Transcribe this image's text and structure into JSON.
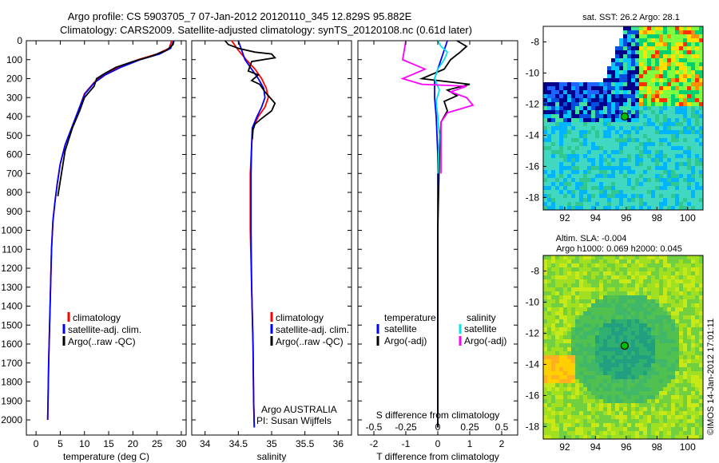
{
  "header": {
    "line1": "Argo profile: CS 5903705_7 07-Jan-2012 20120110_345 12.829S 95.882E",
    "line2": "Climatology: CARS2009. Satellite-adjusted climatology: synTS_20120108.nc (0.61d later)"
  },
  "colors": {
    "climatology": "#ff0000",
    "satellite": "#0000ff",
    "argo": "#000000",
    "sal_satellite": "#00e5ee",
    "sal_argo": "#ff00ff"
  },
  "chart_data": [
    {
      "id": "temperature",
      "type": "line",
      "xlabel": "temperature (deg C)",
      "ylabel": "",
      "xlim": [
        -2,
        31
      ],
      "ylim": [
        2080,
        0
      ],
      "xticks": [
        "0",
        "5",
        "10",
        "15",
        "20",
        "25",
        "30"
      ],
      "yticks": [
        "0",
        "100",
        "200",
        "300",
        "400",
        "500",
        "600",
        "700",
        "800",
        "900",
        "1000",
        "1100",
        "1200",
        "1300",
        "1400",
        "1500",
        "1600",
        "1700",
        "1800",
        "1900",
        "2000"
      ],
      "legend": [
        "climatology",
        "satellite-adj. clim.",
        "Argo(..raw -QC)"
      ],
      "series": [
        {
          "name": "climatology",
          "color_key": "climatology",
          "x": [
            28,
            27.5,
            25,
            21,
            17,
            14,
            12,
            10,
            9,
            7.5,
            6,
            5,
            4.4,
            3.9,
            3.5,
            3.2,
            3,
            2.8,
            2.6,
            2.4
          ],
          "y": [
            0,
            40,
            70,
            100,
            140,
            180,
            220,
            280,
            350,
            450,
            550,
            650,
            750,
            850,
            950,
            1100,
            1300,
            1500,
            1700,
            2000
          ]
        },
        {
          "name": "satellite-adj. clim.",
          "color_key": "satellite",
          "x": [
            28.4,
            27.8,
            25.5,
            21.5,
            17.5,
            14.3,
            12.1,
            10.1,
            9,
            7.5,
            6,
            5,
            4.4,
            3.9,
            3.5,
            3.2,
            3,
            2.8,
            2.6,
            2.4
          ],
          "y": [
            0,
            40,
            70,
            100,
            140,
            180,
            220,
            280,
            350,
            450,
            550,
            650,
            750,
            850,
            950,
            1100,
            1300,
            1500,
            1700,
            2000
          ]
        },
        {
          "name": "Argo(..raw -QC)",
          "color_key": "argo",
          "x": [
            28.5,
            28.3,
            27,
            24,
            20,
            16.5,
            14,
            12.5,
            12,
            11,
            10,
            9,
            7.5,
            6,
            4.5
          ],
          "y": [
            0,
            20,
            50,
            80,
            110,
            140,
            175,
            200,
            240,
            270,
            300,
            370,
            460,
            580,
            820
          ]
        }
      ]
    },
    {
      "id": "salinity",
      "type": "line",
      "xlabel": "salinity",
      "xlim": [
        33.8,
        36.2
      ],
      "ylim": [
        2080,
        0
      ],
      "xticks": [
        "34",
        "34.5",
        "35",
        "35.5",
        "36"
      ],
      "legend": [
        "climatology",
        "satellite-adj. clim.",
        "Argo(..raw -QC)"
      ],
      "series": [
        {
          "name": "climatology",
          "color_key": "climatology",
          "x": [
            34.4,
            34.5,
            34.62,
            34.75,
            34.85,
            34.92,
            34.95,
            34.9,
            34.8,
            34.72,
            34.7,
            34.68,
            34.68,
            34.7,
            34.72,
            34.73,
            34.74
          ],
          "y": [
            0,
            50,
            100,
            150,
            200,
            250,
            300,
            350,
            400,
            460,
            550,
            700,
            1000,
            1300,
            1600,
            1900,
            2040
          ]
        },
        {
          "name": "satellite-adj. clim.",
          "color_key": "satellite",
          "x": [
            34.5,
            34.55,
            34.6,
            34.7,
            34.8,
            34.88,
            34.9,
            34.85,
            34.78,
            34.71,
            34.7,
            34.69,
            34.69,
            34.7,
            34.72,
            34.73,
            34.74
          ],
          "y": [
            0,
            50,
            100,
            150,
            200,
            250,
            300,
            350,
            400,
            460,
            550,
            700,
            1000,
            1300,
            1600,
            1900,
            2040
          ]
        },
        {
          "name": "Argo(..raw -QC)",
          "color_key": "argo",
          "x": [
            34.3,
            34.35,
            34.5,
            34.75,
            35.0,
            35.05,
            34.7,
            34.65,
            34.8,
            34.7,
            34.82,
            34.9,
            35.05,
            35.0,
            34.85,
            34.75,
            34.72,
            34.71
          ],
          "y": [
            0,
            20,
            40,
            60,
            70,
            90,
            110,
            160,
            180,
            210,
            230,
            270,
            330,
            370,
            410,
            440,
            470,
            520
          ]
        }
      ]
    },
    {
      "id": "difference",
      "type": "line",
      "xlabel": "T difference from climatology",
      "xlabel2": "S difference from climatology",
      "xlim": [
        -2.5,
        2.5
      ],
      "ylim": [
        2080,
        0
      ],
      "xticks": [
        "-2",
        "-1",
        "0",
        "1",
        "2"
      ],
      "xticks2": [
        "-0.5",
        "-0.25",
        "0",
        "0.25",
        "0.5"
      ],
      "legend_titles": [
        "temperature",
        "salinity"
      ],
      "legend": [
        "satellite",
        "Argo(-adj)",
        "satellite",
        "Argo(-adj)"
      ],
      "series": [
        {
          "name": "temperature satellite",
          "color_key": "satellite",
          "x": [
            0.3,
            0.2,
            0.1,
            0,
            -0.1,
            -0.1,
            -0.05,
            0,
            0,
            0,
            0
          ],
          "y": [
            0,
            50,
            100,
            150,
            200,
            300,
            400,
            600,
            1000,
            1500,
            2040
          ]
        },
        {
          "name": "temperature Argo(-adj)",
          "color_key": "argo",
          "x": [
            0.6,
            0.9,
            0.7,
            0.4,
            0.2,
            -0.5,
            1.0,
            0.3,
            0.6,
            0.2,
            0.3,
            0.1,
            0.05,
            0,
            0
          ],
          "y": [
            0,
            30,
            60,
            100,
            150,
            200,
            230,
            260,
            290,
            320,
            370,
            430,
            600,
            1000,
            2040
          ]
        },
        {
          "name": "salinity satellite",
          "color_key": "sal_satellite",
          "x": [
            0,
            0.1,
            0.3,
            0.2,
            0,
            -0.1,
            0.05,
            -0.05,
            0,
            0.05,
            0
          ],
          "y": [
            0,
            30,
            60,
            100,
            150,
            200,
            260,
            320,
            400,
            500,
            700
          ]
        },
        {
          "name": "salinity Argo(-adj)",
          "color_key": "sal_argo",
          "x": [
            -1.0,
            -1.1,
            -0.4,
            -1.1,
            -0.5,
            0.9,
            0.4,
            0.9,
            1.1,
            0.3,
            0.1,
            0.1
          ],
          "y": [
            0,
            100,
            150,
            200,
            230,
            240,
            270,
            300,
            340,
            380,
            430,
            700
          ]
        }
      ]
    }
  ],
  "annotations": {
    "argo_country": "Argo AUSTRALIA",
    "pi": "PI: Susan Wijffels"
  },
  "maps": {
    "sst": {
      "title": "sat. SST: 26.2 Argo: 28.1",
      "xticks": [
        "92",
        "94",
        "96",
        "98",
        "100"
      ],
      "yticks": [
        "-8",
        "-10",
        "-12",
        "-14",
        "-16",
        "-18"
      ],
      "marker_lon": 95.9,
      "marker_lat": -12.8
    },
    "sla": {
      "title1": "Altim. SLA: -0.004",
      "title2": "Argo h1000: 0.069 h2000: 0.045",
      "xticks": [
        "92",
        "94",
        "96",
        "98",
        "100"
      ],
      "yticks": [
        "-8",
        "-10",
        "-12",
        "-14",
        "-16",
        "-18"
      ],
      "marker_lon": 95.9,
      "marker_lat": -12.8
    }
  },
  "footer": {
    "credit": "©IMOS 14-Jan-2012 17:01:11"
  }
}
